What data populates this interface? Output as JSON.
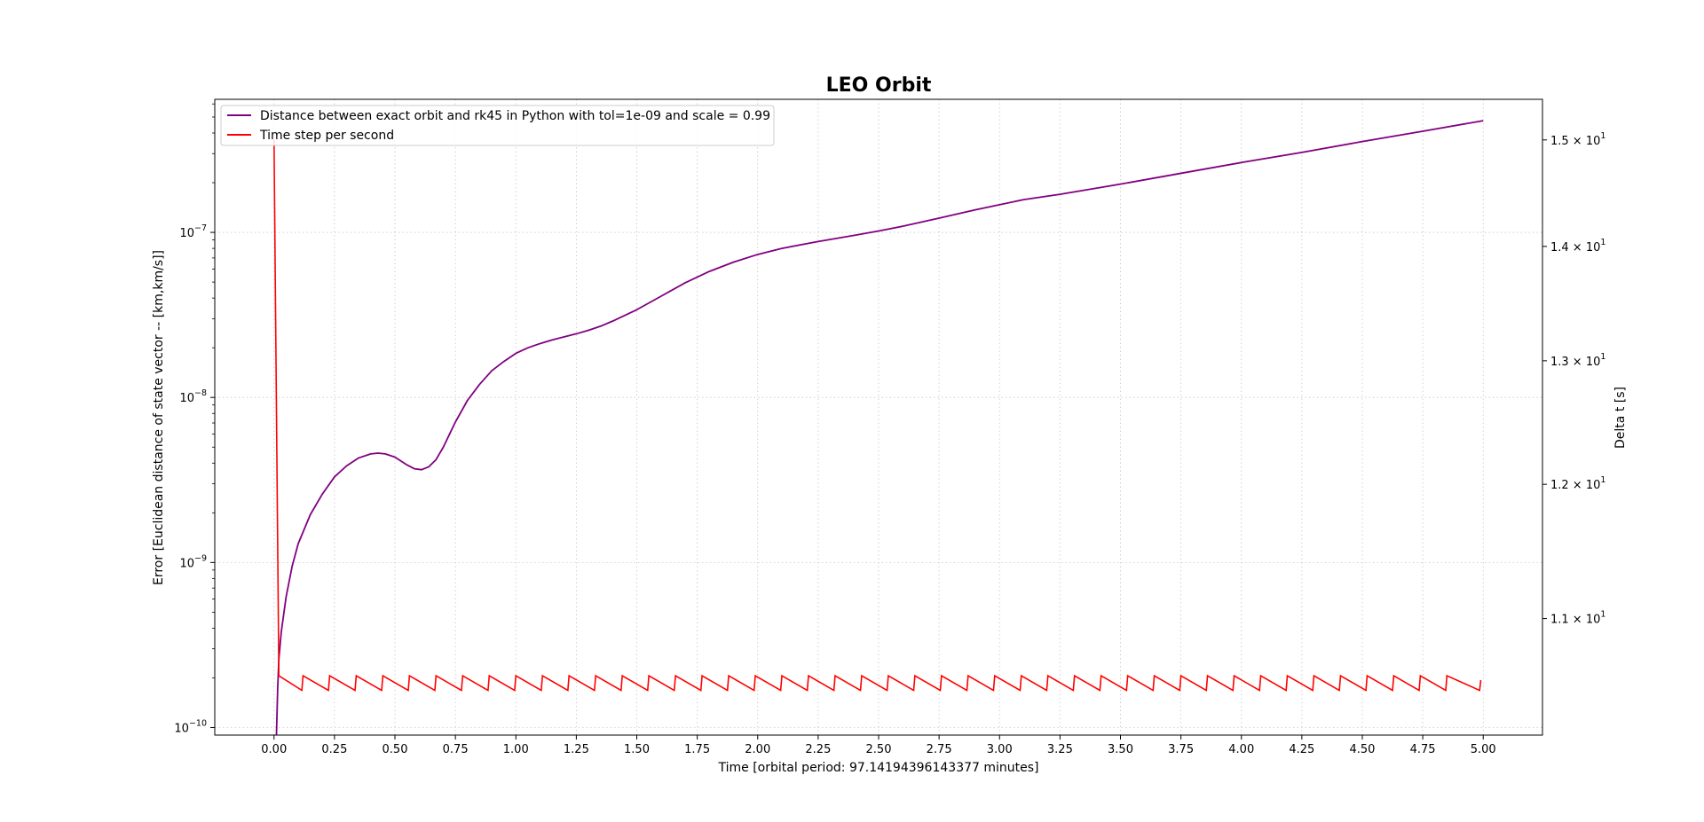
{
  "chart_data": {
    "type": "line",
    "title": "LEO Orbit",
    "xlabel": "Time [orbital period: 97.14194396143377 minutes]",
    "ylabel_left": "Error [Euclidean distance of state vector -- [km,km/s]]",
    "ylabel_right": "Delta t [s]",
    "xlim": [
      -0.245,
      5.245
    ],
    "ylim_left": [
      9e-11,
      6.4e-07
    ],
    "ylim_right": [
      10.2,
      15.4
    ],
    "y_scale_left": "log",
    "y_scale_right": "log",
    "grid": true,
    "legend_position": "upper-left",
    "x_ticks": [
      "0.00",
      "0.25",
      "0.50",
      "0.75",
      "1.00",
      "1.25",
      "1.50",
      "1.75",
      "2.00",
      "2.25",
      "2.50",
      "2.75",
      "3.00",
      "3.25",
      "3.50",
      "3.75",
      "4.00",
      "4.25",
      "4.50",
      "4.75",
      "5.00"
    ],
    "y_ticks_left": [
      {
        "value": 1e-10,
        "base": "10",
        "exp": "−10"
      },
      {
        "value": 1e-09,
        "base": "10",
        "exp": "−9"
      },
      {
        "value": 1e-08,
        "base": "10",
        "exp": "−8"
      },
      {
        "value": 1e-07,
        "base": "10",
        "exp": "−7"
      }
    ],
    "y_ticks_right": [
      {
        "value": 11,
        "mant": "1.1 × 10",
        "exp": "1"
      },
      {
        "value": 12,
        "mant": "1.2 × 10",
        "exp": "1"
      },
      {
        "value": 13,
        "mant": "1.3 × 10",
        "exp": "1"
      },
      {
        "value": 14,
        "mant": "1.4 × 10",
        "exp": "1"
      },
      {
        "value": 15,
        "mant": "1.5 × 10",
        "exp": "1"
      }
    ],
    "series": [
      {
        "name": "Distance between exact orbit and rk45 in Python with tol=1e-09 and scale = 0.99",
        "axis": "left",
        "color": "#800080",
        "x": [
          0.01,
          0.015,
          0.02,
          0.03,
          0.05,
          0.075,
          0.1,
          0.15,
          0.2,
          0.25,
          0.3,
          0.35,
          0.4,
          0.43,
          0.46,
          0.5,
          0.55,
          0.58,
          0.61,
          0.64,
          0.67,
          0.7,
          0.75,
          0.8,
          0.85,
          0.9,
          0.95,
          1.0,
          1.05,
          1.1,
          1.15,
          1.2,
          1.25,
          1.3,
          1.35,
          1.4,
          1.5,
          1.6,
          1.7,
          1.8,
          1.9,
          2.0,
          2.1,
          2.25,
          2.4,
          2.5,
          2.6,
          2.75,
          2.9,
          3.0,
          3.1,
          3.25,
          3.5,
          3.75,
          4.0,
          4.25,
          4.5,
          4.75,
          5.0
        ],
        "y": [
          9e-11,
          1.7e-10,
          2.6e-10,
          3.8e-10,
          6.2e-10,
          9.5e-10,
          1.3e-09,
          1.95e-09,
          2.6e-09,
          3.3e-09,
          3.85e-09,
          4.3e-09,
          4.55e-09,
          4.6e-09,
          4.55e-09,
          4.35e-09,
          3.9e-09,
          3.7e-09,
          3.65e-09,
          3.8e-09,
          4.2e-09,
          5e-09,
          7.1e-09,
          9.6e-09,
          1.2e-08,
          1.45e-08,
          1.65e-08,
          1.85e-08,
          2e-08,
          2.12e-08,
          2.23e-08,
          2.33e-08,
          2.43e-08,
          2.55e-08,
          2.7e-08,
          2.9e-08,
          3.4e-08,
          4.1e-08,
          4.95e-08,
          5.8e-08,
          6.6e-08,
          7.35e-08,
          8e-08,
          8.8e-08,
          9.6e-08,
          1.02e-07,
          1.09e-07,
          1.22e-07,
          1.37e-07,
          1.47e-07,
          1.58e-07,
          1.7e-07,
          1.96e-07,
          2.28e-07,
          2.65e-07,
          3.05e-07,
          3.55e-07,
          4.1e-07,
          4.75e-07
        ]
      },
      {
        "name": "Time step per second",
        "axis": "right",
        "color": "#ff0000",
        "x": [
          0.0,
          0.02,
          0.12,
          0.23,
          0.34,
          0.45,
          0.56,
          0.67,
          0.78,
          0.89,
          1.0,
          1.11,
          1.22,
          1.33,
          1.44,
          1.55,
          1.66,
          1.77,
          1.88,
          1.99,
          2.1,
          2.21,
          2.32,
          2.43,
          2.54,
          2.65,
          2.76,
          2.87,
          2.98,
          3.09,
          3.2,
          3.31,
          3.42,
          3.53,
          3.64,
          3.75,
          3.86,
          3.97,
          4.08,
          4.19,
          4.3,
          4.41,
          4.52,
          4.63,
          4.74,
          4.85,
          4.99
        ],
        "y": [
          15.0,
          10.6,
          10.6,
          10.6,
          10.6,
          10.6,
          10.6,
          10.6,
          10.6,
          10.6,
          10.6,
          10.6,
          10.6,
          10.6,
          10.6,
          10.6,
          10.6,
          10.6,
          10.6,
          10.6,
          10.6,
          10.6,
          10.6,
          10.6,
          10.6,
          10.6,
          10.6,
          10.6,
          10.6,
          10.6,
          10.6,
          10.6,
          10.6,
          10.6,
          10.6,
          10.6,
          10.6,
          10.6,
          10.6,
          10.6,
          10.6,
          10.6,
          10.6,
          10.6,
          10.6,
          10.6,
          10.57
        ],
        "sawtooth_low": 10.5
      }
    ]
  }
}
